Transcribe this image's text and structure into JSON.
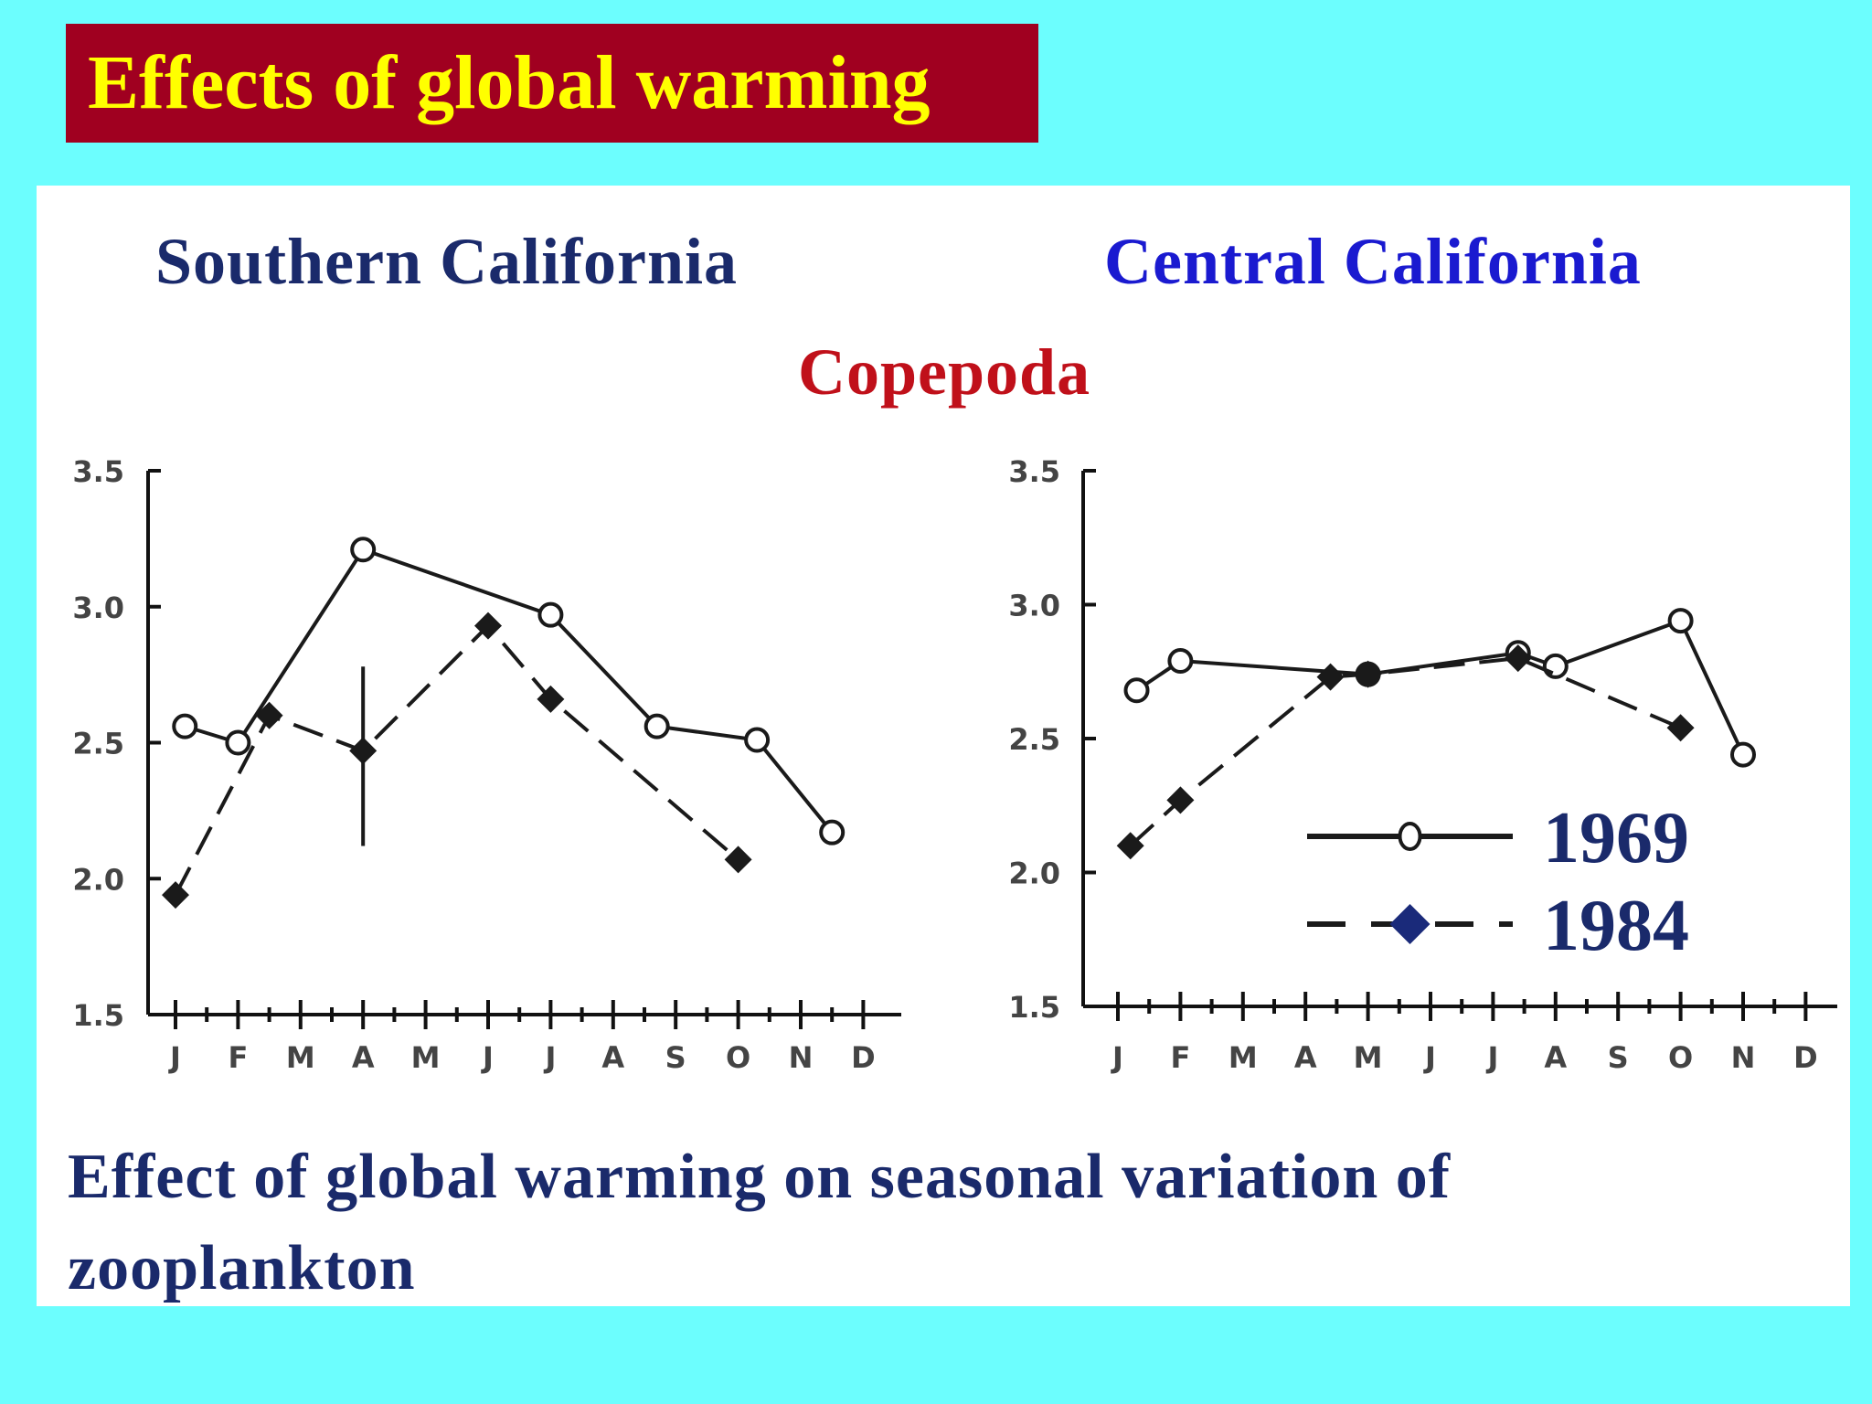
{
  "slide": {
    "title": "Effects of global warming",
    "caption": "Effect of global warming  on seasonal variation of zooplankton"
  },
  "colors": {
    "background": "#6cfefe",
    "title_bg": "#a00020",
    "title_text": "#ffff00",
    "panel_bg": "#ffffff",
    "southern_title": "#1a2a6b",
    "central_title": "#1a1ad0",
    "copepoda": "#c0101a",
    "caption": "#1a2a6b",
    "legend_text": "#1a2a6b",
    "line_1969": "#1a1a1a",
    "line_1984": "#1a1a1a",
    "legend_marker_1984": "#1a2a7a"
  },
  "chart_data": [
    {
      "type": "line",
      "title": "Southern California",
      "subtitle": "Copepoda",
      "categories": [
        "J",
        "F",
        "M",
        "A",
        "M",
        "J",
        "J",
        "A",
        "S",
        "O",
        "N",
        "D"
      ],
      "ylim": [
        1.5,
        3.5
      ],
      "yticks": [
        "3.5",
        "3.0",
        "2.5",
        "2.0",
        "1.5"
      ],
      "grid": false,
      "series": [
        {
          "name": "1969",
          "line": "solid",
          "marker": "open-circle",
          "points": [
            {
              "x": 0.15,
              "y": 2.56
            },
            {
              "x": 1.0,
              "y": 2.5
            },
            {
              "x": 3.0,
              "y": 3.21
            },
            {
              "x": 6.0,
              "y": 2.97
            },
            {
              "x": 7.7,
              "y": 2.56
            },
            {
              "x": 9.3,
              "y": 2.51
            },
            {
              "x": 10.5,
              "y": 2.17
            }
          ]
        },
        {
          "name": "1984",
          "line": "dashed",
          "marker": "filled-diamond",
          "points": [
            {
              "x": 0.0,
              "y": 1.94
            },
            {
              "x": 1.5,
              "y": 2.6
            },
            {
              "x": 3.0,
              "y": 2.47
            },
            {
              "x": 5.0,
              "y": 2.93
            },
            {
              "x": 6.0,
              "y": 2.66
            },
            {
              "x": 9.0,
              "y": 2.07
            }
          ]
        }
      ],
      "error_bars": [
        {
          "series": "1984",
          "x": 3.0,
          "low": 2.12,
          "high": 2.78
        }
      ]
    },
    {
      "type": "line",
      "title": "Central California",
      "categories": [
        "J",
        "F",
        "M",
        "A",
        "M",
        "J",
        "J",
        "A",
        "S",
        "O",
        "N",
        "D"
      ],
      "ylim": [
        1.5,
        3.5
      ],
      "yticks": [
        "3.5",
        "3.0",
        "2.5",
        "2.0",
        "1.5"
      ],
      "grid": false,
      "legend": {
        "position": "bottom-right",
        "entries": [
          "1969",
          "1984"
        ]
      },
      "series": [
        {
          "name": "1969",
          "line": "solid",
          "marker": "open-circle",
          "points": [
            {
              "x": 0.3,
              "y": 2.68
            },
            {
              "x": 1.0,
              "y": 2.79
            },
            {
              "x": 4.0,
              "y": 2.74
            },
            {
              "x": 6.4,
              "y": 2.82
            },
            {
              "x": 7.0,
              "y": 2.77
            },
            {
              "x": 9.0,
              "y": 2.94
            },
            {
              "x": 10.0,
              "y": 2.44
            }
          ]
        },
        {
          "name": "1984",
          "line": "dashed",
          "marker": "filled-diamond",
          "points": [
            {
              "x": 0.2,
              "y": 2.1
            },
            {
              "x": 1.0,
              "y": 2.27
            },
            {
              "x": 3.4,
              "y": 2.73
            },
            {
              "x": 4.0,
              "y": 2.74
            },
            {
              "x": 6.4,
              "y": 2.8
            },
            {
              "x": 9.0,
              "y": 2.54
            }
          ]
        }
      ]
    }
  ]
}
